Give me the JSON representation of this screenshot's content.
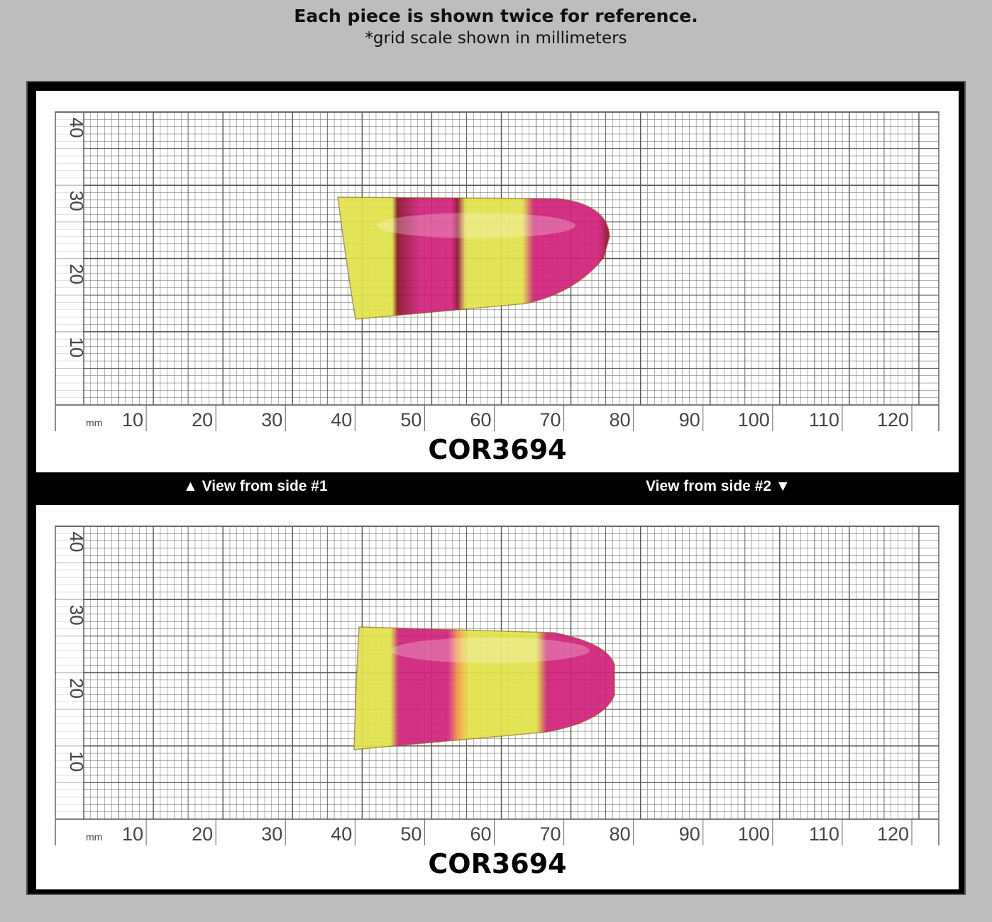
{
  "header": {
    "title": "Each piece is shown twice for reference.",
    "subtitle": "*grid scale shown in millimeters"
  },
  "panels": [
    {
      "code": "COR3694"
    },
    {
      "code": "COR3694"
    }
  ],
  "views": {
    "side1": "▲ View from side #1",
    "side2": "View from side #2 ▼"
  },
  "grid": {
    "unit": "mm",
    "x_ticks": [
      "10",
      "20",
      "30",
      "40",
      "50",
      "60",
      "70",
      "80",
      "90",
      "100",
      "110",
      "120"
    ],
    "y_ticks": [
      "40",
      "30",
      "20",
      "10"
    ]
  },
  "colors": {
    "background": "#bdbdbd",
    "frame": "#000000",
    "grid_line": "#555555",
    "gem_yellow": "#e2e24a",
    "gem_pink": "#d0207a",
    "gem_red": "#8a0f2c"
  }
}
